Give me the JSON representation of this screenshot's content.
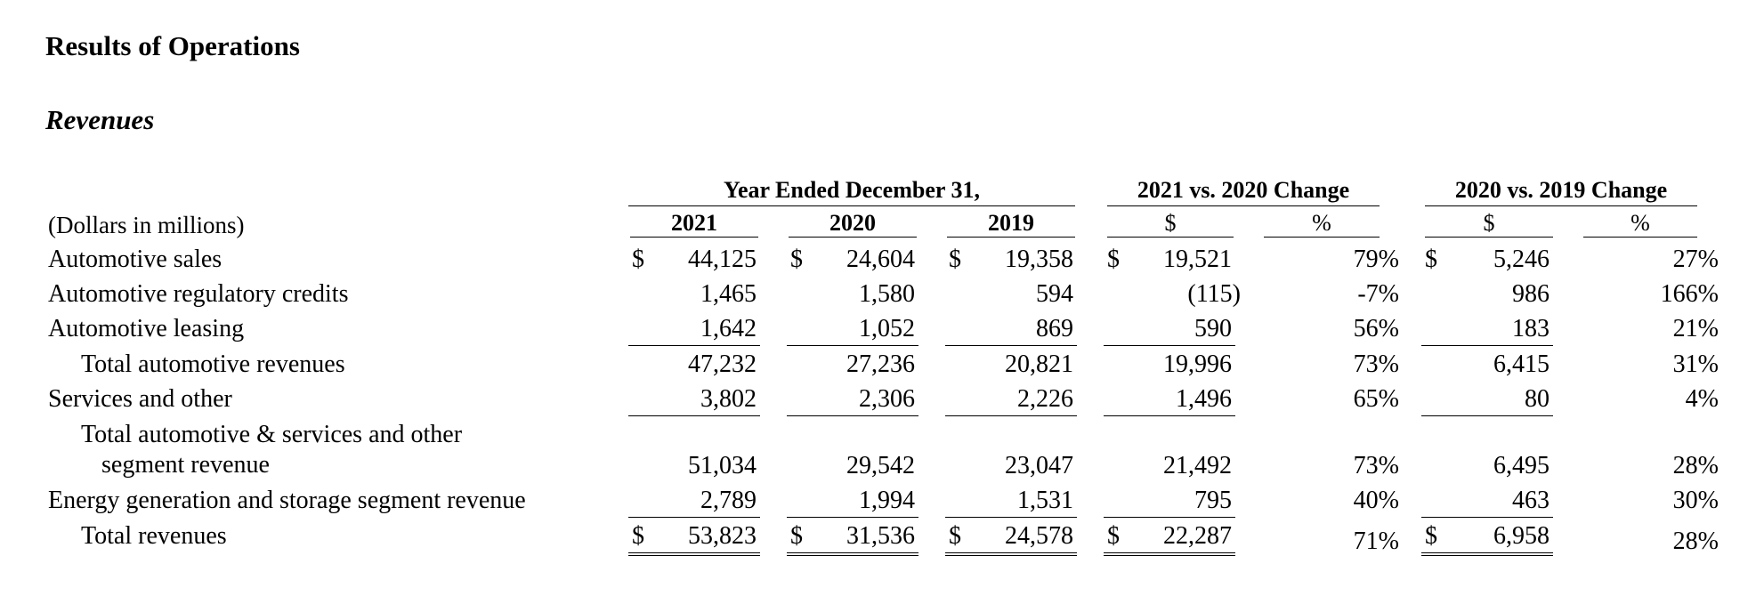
{
  "heading": "Results of Operations",
  "subheading": "Revenues",
  "table": {
    "unit_label": "(Dollars in millions)",
    "group_headers": {
      "years": "Year Ended December 31,",
      "change_2021_2020": "2021 vs. 2020 Change",
      "change_2020_2019": "2020 vs. 2019 Change"
    },
    "columns": {
      "y2021": "2021",
      "y2020": "2020",
      "y2019": "2019",
      "chg1_dollar": "$",
      "chg1_pct": "%",
      "chg2_dollar": "$",
      "chg2_pct": "%"
    },
    "currency_symbol": "$",
    "rows": [
      {
        "label": "Automotive sales",
        "y2021": "44,125",
        "y2020": "24,604",
        "y2019": "19,358",
        "chg1_dollar": "19,521",
        "chg1_pct": "79%",
        "chg2_dollar": "5,246",
        "chg2_pct": "27%"
      },
      {
        "label": "Automotive regulatory credits",
        "y2021": "1,465",
        "y2020": "1,580",
        "y2019": "594",
        "chg1_dollar": "(115)",
        "chg1_pct": "-7%",
        "chg2_dollar": "986",
        "chg2_pct": "166%"
      },
      {
        "label": "Automotive leasing",
        "y2021": "1,642",
        "y2020": "1,052",
        "y2019": "869",
        "chg1_dollar": "590",
        "chg1_pct": "56%",
        "chg2_dollar": "183",
        "chg2_pct": "21%"
      },
      {
        "label": "Total automotive revenues",
        "y2021": "47,232",
        "y2020": "27,236",
        "y2019": "20,821",
        "chg1_dollar": "19,996",
        "chg1_pct": "73%",
        "chg2_dollar": "6,415",
        "chg2_pct": "31%"
      },
      {
        "label": "Services and other",
        "y2021": "3,802",
        "y2020": "2,306",
        "y2019": "2,226",
        "chg1_dollar": "1,496",
        "chg1_pct": "65%",
        "chg2_dollar": "80",
        "chg2_pct": "4%"
      },
      {
        "label_line1": "Total automotive & services and other",
        "label_line2": "segment revenue",
        "y2021": "51,034",
        "y2020": "29,542",
        "y2019": "23,047",
        "chg1_dollar": "21,492",
        "chg1_pct": "73%",
        "chg2_dollar": "6,495",
        "chg2_pct": "28%"
      },
      {
        "label": "Energy generation and storage segment revenue",
        "y2021": "2,789",
        "y2020": "1,994",
        "y2019": "1,531",
        "chg1_dollar": "795",
        "chg1_pct": "40%",
        "chg2_dollar": "463",
        "chg2_pct": "30%"
      },
      {
        "label": "Total revenues",
        "y2021": "53,823",
        "y2020": "31,536",
        "y2019": "24,578",
        "chg1_dollar": "22,287",
        "chg1_pct": "71%",
        "chg2_dollar": "6,958",
        "chg2_pct": "28%"
      }
    ]
  }
}
